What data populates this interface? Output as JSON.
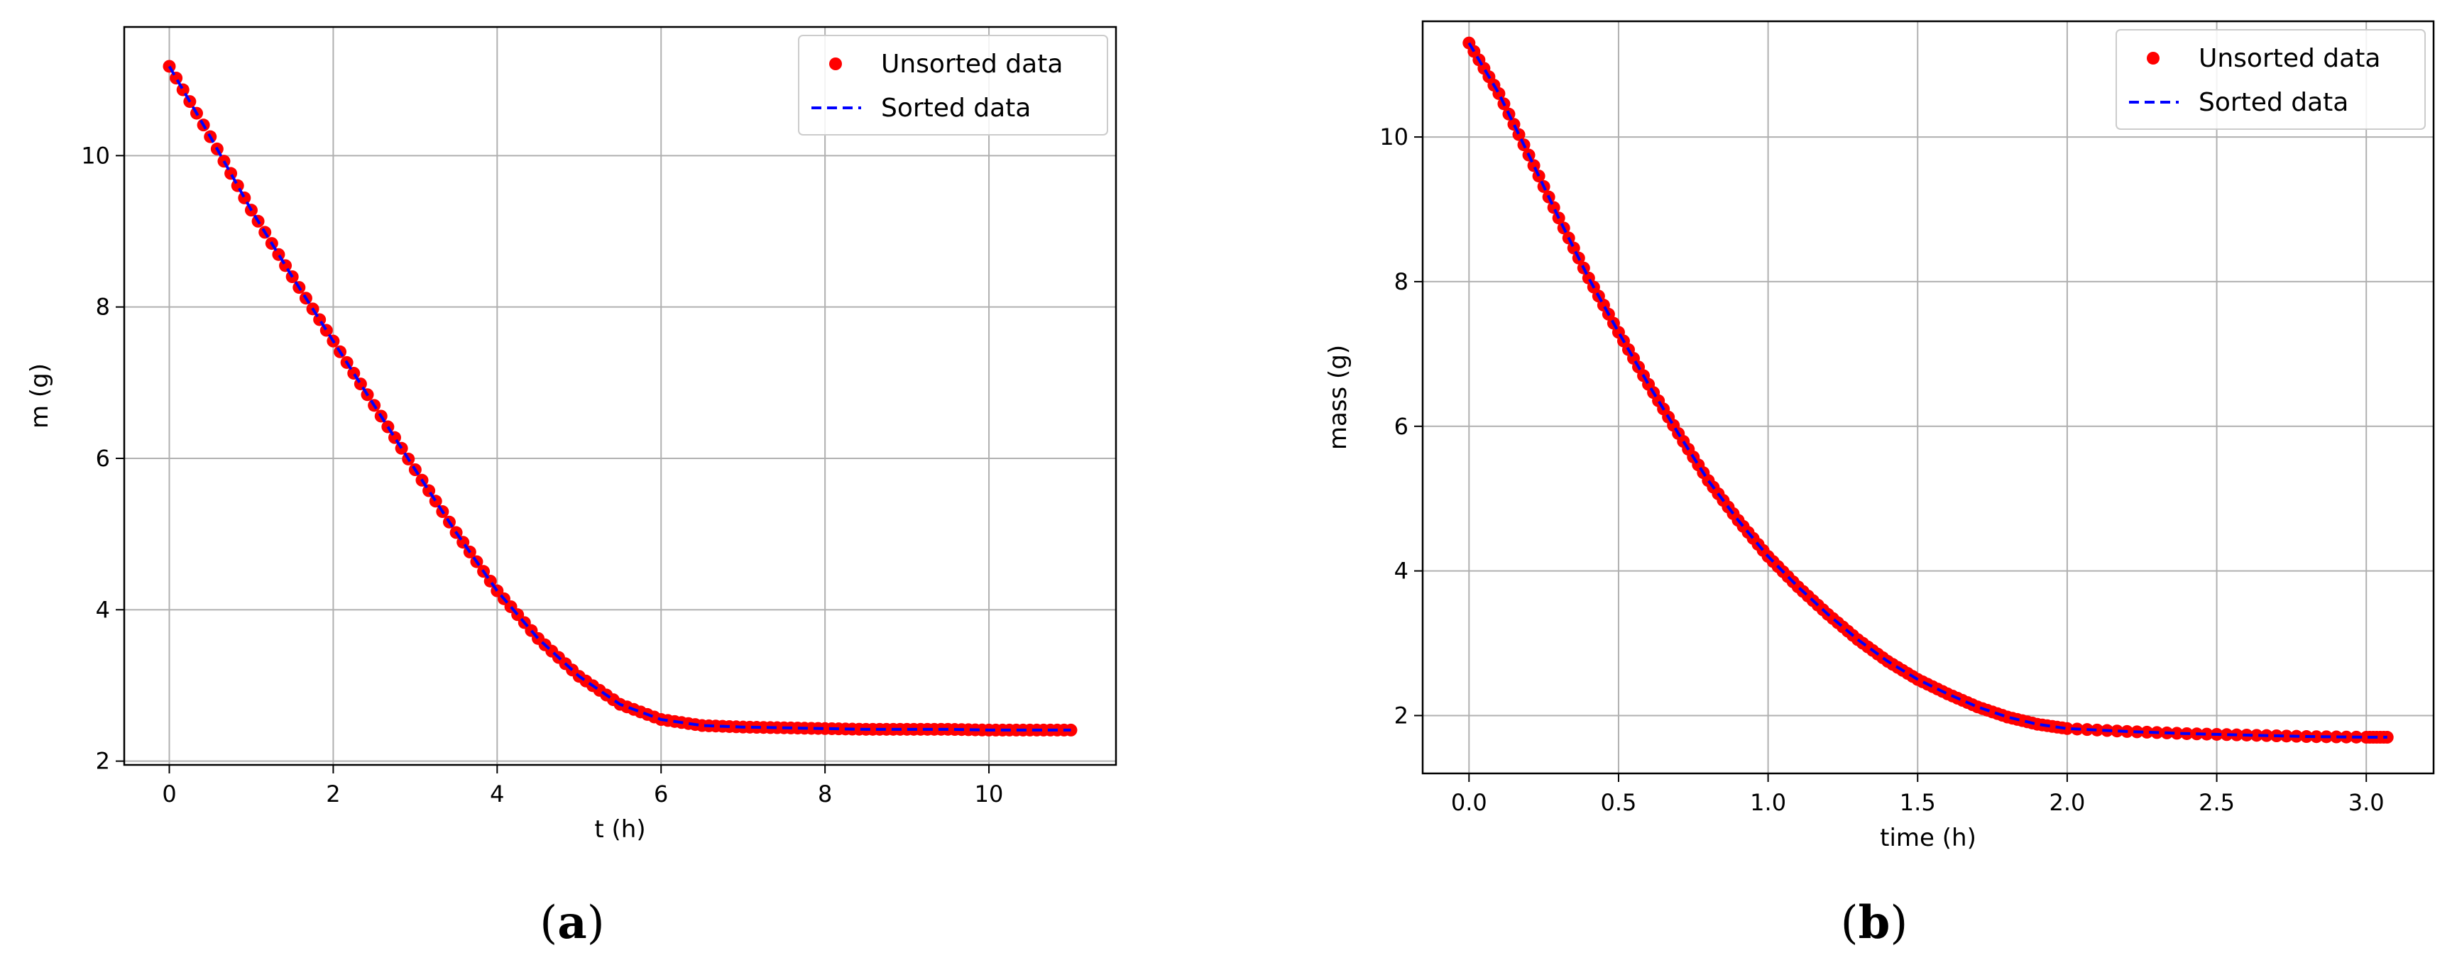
{
  "chart_data": [
    {
      "type": "line",
      "panel_label": "a",
      "xlabel": "t (h)",
      "ylabel": "m (g)",
      "xlim": [
        -0.55,
        11.55
      ],
      "ylim": [
        1.95,
        11.7
      ],
      "xticks": [
        0,
        2,
        4,
        6,
        8,
        10
      ],
      "yticks": [
        2,
        4,
        6,
        8,
        10
      ],
      "grid": true,
      "legend_position": "top-right",
      "series": [
        {
          "name": "Unsorted data",
          "style": "markers",
          "color": "#ff0000",
          "x": [
            0,
            0.5,
            1,
            1.5,
            2,
            2.5,
            3,
            3.5,
            4,
            4.5,
            5,
            5.5,
            6,
            6.5,
            7,
            7.5,
            8,
            8.5,
            9,
            9.5,
            10,
            10.5,
            11
          ],
          "y": [
            11.18,
            10.25,
            9.28,
            8.4,
            7.55,
            6.7,
            5.85,
            5.02,
            4.25,
            3.62,
            3.12,
            2.75,
            2.55,
            2.47,
            2.45,
            2.44,
            2.43,
            2.42,
            2.42,
            2.42,
            2.41,
            2.41,
            2.41
          ]
        },
        {
          "name": "Sorted data",
          "style": "dashed",
          "color": "#0000ff",
          "x": [
            0,
            0.5,
            1,
            1.5,
            2,
            2.5,
            3,
            3.5,
            4,
            4.5,
            5,
            5.5,
            6,
            6.5,
            7,
            7.5,
            8,
            8.5,
            9,
            9.5,
            10,
            10.5,
            11
          ],
          "y": [
            11.18,
            10.25,
            9.28,
            8.4,
            7.55,
            6.7,
            5.85,
            5.02,
            4.25,
            3.62,
            3.12,
            2.75,
            2.55,
            2.47,
            2.45,
            2.44,
            2.43,
            2.42,
            2.42,
            2.42,
            2.41,
            2.41,
            2.41
          ]
        }
      ]
    },
    {
      "type": "line",
      "panel_label": "b",
      "xlabel": "time (h)",
      "ylabel": "mass (g)",
      "xlim": [
        -0.155,
        3.225
      ],
      "ylim": [
        1.2,
        11.6
      ],
      "xticks": [
        0.0,
        0.5,
        1.0,
        1.5,
        2.0,
        2.5,
        3.0
      ],
      "yticks": [
        2,
        4,
        6,
        8,
        10
      ],
      "grid": true,
      "legend_position": "top-right",
      "series": [
        {
          "name": "Unsorted data",
          "style": "markers",
          "color": "#ff0000",
          "x": [
            0,
            0.1,
            0.2,
            0.3,
            0.4,
            0.5,
            0.6,
            0.7,
            0.8,
            0.9,
            1.0,
            1.1,
            1.2,
            1.3,
            1.4,
            1.5,
            1.6,
            1.7,
            1.8,
            1.9,
            2.0,
            2.2,
            2.4,
            2.6,
            2.8,
            3.0,
            3.07
          ],
          "y": [
            11.3,
            10.6,
            9.75,
            8.88,
            8.05,
            7.3,
            6.58,
            5.9,
            5.25,
            4.7,
            4.2,
            3.78,
            3.4,
            3.05,
            2.75,
            2.5,
            2.3,
            2.12,
            1.98,
            1.88,
            1.82,
            1.78,
            1.75,
            1.73,
            1.71,
            1.7,
            1.7
          ]
        },
        {
          "name": "Sorted data",
          "style": "dashed",
          "color": "#0000ff",
          "x": [
            0,
            0.1,
            0.2,
            0.3,
            0.4,
            0.5,
            0.6,
            0.7,
            0.8,
            0.9,
            1.0,
            1.1,
            1.2,
            1.3,
            1.4,
            1.5,
            1.6,
            1.7,
            1.8,
            1.9,
            2.0,
            2.2,
            2.4,
            2.6,
            2.8,
            3.0,
            3.07
          ],
          "y": [
            11.3,
            10.6,
            9.75,
            8.88,
            8.05,
            7.3,
            6.58,
            5.9,
            5.25,
            4.7,
            4.2,
            3.78,
            3.4,
            3.05,
            2.75,
            2.5,
            2.3,
            2.12,
            1.98,
            1.88,
            1.82,
            1.78,
            1.75,
            1.73,
            1.71,
            1.7,
            1.7
          ]
        }
      ]
    }
  ]
}
